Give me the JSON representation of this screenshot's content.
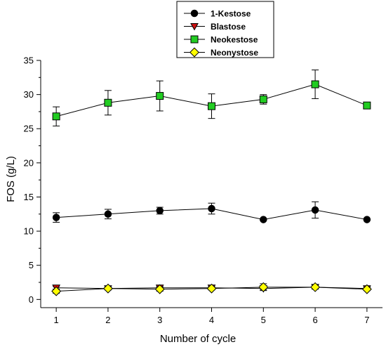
{
  "chart_data": {
    "type": "line",
    "title": "",
    "xlabel": "Number of cycle",
    "ylabel": "FOS (g/L)",
    "xlim": [
      0.7,
      7.3
    ],
    "ylim": [
      -1.2,
      35
    ],
    "xticks": [
      1,
      2,
      3,
      4,
      5,
      6,
      7
    ],
    "yticks": [
      0,
      5,
      10,
      15,
      20,
      25,
      30,
      35
    ],
    "grid": false,
    "legend_position": "top-center",
    "x": [
      1,
      2,
      3,
      4,
      5,
      6,
      7
    ],
    "series": [
      {
        "name": "1-Kestose",
        "marker": "circle",
        "color": "#000000",
        "values": [
          12.0,
          12.5,
          13.0,
          13.3,
          11.7,
          13.1,
          11.7
        ],
        "errors": [
          0.7,
          0.7,
          0.5,
          0.8,
          0.0,
          1.2,
          0.0
        ]
      },
      {
        "name": "Blastose",
        "marker": "triangle-down",
        "color": "#cc1111",
        "values": [
          1.7,
          1.6,
          1.7,
          1.7,
          1.6,
          1.8,
          1.6
        ],
        "errors": [
          0.2,
          0.2,
          0.2,
          0.2,
          0.2,
          0.2,
          0.2
        ]
      },
      {
        "name": "Neokestose",
        "marker": "square",
        "color": "#22cc22",
        "values": [
          26.8,
          28.8,
          29.8,
          28.3,
          29.3,
          31.5,
          28.4
        ],
        "errors": [
          1.4,
          1.8,
          2.2,
          1.8,
          0.7,
          2.1,
          0.3
        ]
      },
      {
        "name": "Neonystose",
        "marker": "diamond",
        "color": "#ffff00",
        "values": [
          1.2,
          1.6,
          1.5,
          1.6,
          1.8,
          1.8,
          1.5
        ],
        "errors": [
          0.3,
          0.2,
          0.3,
          0.2,
          0.5,
          0.3,
          0.2
        ]
      }
    ]
  }
}
